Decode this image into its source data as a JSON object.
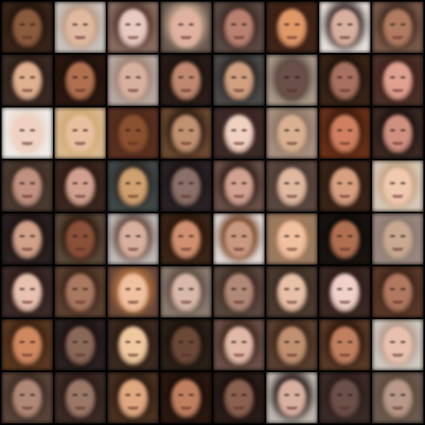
{
  "grid": {
    "rows": 8,
    "cols": 8,
    "cells": [
      {
        "bg": "#3a2418",
        "face": "#8a5a3c",
        "hair": "#1e120c"
      },
      {
        "bg": "#c9c2bc",
        "face": "#e0b8a0",
        "hair": "#b89880"
      },
      {
        "bg": "#8a6c60",
        "face": "#e8c8c0",
        "hair": "#4a302a"
      },
      {
        "bg": "#6a5a50",
        "face": "#e0b0a0",
        "hair": "#c8a890"
      },
      {
        "bg": "#5a4a44",
        "face": "#b88070",
        "hair": "#3a2620"
      },
      {
        "bg": "#402418",
        "face": "#e09868",
        "hair": "#3a1e12"
      },
      {
        "bg": "#e8e0dc",
        "face": "#d8b0a0",
        "hair": "#2a1c1a"
      },
      {
        "bg": "#7a5a48",
        "face": "#b07a60",
        "hair": "#3a2620"
      },
      {
        "bg": "#3a2a24",
        "face": "#e0b090",
        "hair": "#2a1a14"
      },
      {
        "bg": "#2a1810",
        "face": "#b07050",
        "hair": "#1a0e08"
      },
      {
        "bg": "#b8a8a0",
        "face": "#d8b0a0",
        "hair": "#9a8070"
      },
      {
        "bg": "#2a1c18",
        "face": "#c08870",
        "hair": "#1a100c"
      },
      {
        "bg": "#4a4a48",
        "face": "#d0a080",
        "hair": "#2a2220"
      },
      {
        "bg": "#a89888",
        "face": "#6a5048",
        "hair": "#5a4840"
      },
      {
        "bg": "#3a2418",
        "face": "#a87060",
        "hair": "#1a1008"
      },
      {
        "bg": "#4a3028",
        "face": "#e0a090",
        "hair": "#3a2018"
      },
      {
        "bg": "#f0ece8",
        "face": "#f0d0c0",
        "hair": "#e8d8c8"
      },
      {
        "bg": "#d8b890",
        "face": "#e8c0a0",
        "hair": "#d0a870"
      },
      {
        "bg": "#5a3020",
        "face": "#8a5030",
        "hair": "#4a2818"
      },
      {
        "bg": "#6a4830",
        "face": "#c09070",
        "hair": "#2a1a10"
      },
      {
        "bg": "#3a2a28",
        "face": "#f0d0c0",
        "hair": "#3a2420"
      },
      {
        "bg": "#a89080",
        "face": "#d8b090",
        "hair": "#8a7060"
      },
      {
        "bg": "#6a3018",
        "face": "#d08060",
        "hair": "#3a1a0c"
      },
      {
        "bg": "#3a2824",
        "face": "#d09080",
        "hair": "#1a100c"
      },
      {
        "bg": "#4a3a30",
        "face": "#c09080",
        "hair": "#3a2a20"
      },
      {
        "bg": "#3a2820",
        "face": "#d0a090",
        "hair": "#2a1810"
      },
      {
        "bg": "#404848",
        "face": "#d0a070",
        "hair": "#2a2420"
      },
      {
        "bg": "#2a2224",
        "face": "#8a7068",
        "hair": "#1a1214"
      },
      {
        "bg": "#6a5048",
        "face": "#d0a090",
        "hair": "#2a1a14"
      },
      {
        "bg": "#5a4840",
        "face": "#e0b8a0",
        "hair": "#4a3830"
      },
      {
        "bg": "#3a2418",
        "face": "#d8a080",
        "hair": "#2a1810"
      },
      {
        "bg": "#d8c8b8",
        "face": "#f0c8b0",
        "hair": "#c0a080"
      },
      {
        "bg": "#2a2020",
        "face": "#d0a088",
        "hair": "#1a1010"
      },
      {
        "bg": "#5a4838",
        "face": "#8a5038",
        "hair": "#2a1810"
      },
      {
        "bg": "#c0b8b4",
        "face": "#d8b0a0",
        "hair": "#5a4038"
      },
      {
        "bg": "#3a2418",
        "face": "#d09070",
        "hair": "#2a1408"
      },
      {
        "bg": "#e0d8d4",
        "face": "#c89880",
        "hair": "#6a3818"
      },
      {
        "bg": "#9a7a60",
        "face": "#f0c0a0",
        "hair": "#a07858"
      },
      {
        "bg": "#1a1410",
        "face": "#b07050",
        "hair": "#0a0806"
      },
      {
        "bg": "#9a8880",
        "face": "#c8a890",
        "hair": "#8a7870"
      },
      {
        "bg": "#3a2a28",
        "face": "#e8c0b0",
        "hair": "#2a1814"
      },
      {
        "bg": "#5a4030",
        "face": "#a87860",
        "hair": "#3a2418"
      },
      {
        "bg": "#6a4838",
        "face": "#f0c0a0",
        "hair": "#b07040"
      },
      {
        "bg": "#8a7a70",
        "face": "#d8b8a8",
        "hair": "#5a4840"
      },
      {
        "bg": "#5a4840",
        "face": "#b08878",
        "hair": "#3a2820"
      },
      {
        "bg": "#4a3a30",
        "face": "#e8c0a8",
        "hair": "#3a2a20"
      },
      {
        "bg": "#3a2824",
        "face": "#f0d0c8",
        "hair": "#2a1814"
      },
      {
        "bg": "#5a3828",
        "face": "#b07860",
        "hair": "#3a2418"
      },
      {
        "bg": "#5a3820",
        "face": "#d08860",
        "hair": "#3a2010"
      },
      {
        "bg": "#2a2020",
        "face": "#8a6858",
        "hair": "#1a1010"
      },
      {
        "bg": "#3a2a20",
        "face": "#f0c8a0",
        "hair": "#2a1810"
      },
      {
        "bg": "#2a2018",
        "face": "#6a4838",
        "hair": "#1a1008"
      },
      {
        "bg": "#6a5048",
        "face": "#e0b8a8",
        "hair": "#3a2418"
      },
      {
        "bg": "#5a4030",
        "face": "#c09070",
        "hair": "#3a2418"
      },
      {
        "bg": "#5a3a28",
        "face": "#c08060",
        "hair": "#2a1408"
      },
      {
        "bg": "#d0c8c0",
        "face": "#e8c0b0",
        "hair": "#b09888"
      },
      {
        "bg": "#5a4438",
        "face": "#b08878",
        "hair": "#3a2820"
      },
      {
        "bg": "#3a2a24",
        "face": "#9a7868",
        "hair": "#2a1814"
      },
      {
        "bg": "#4a3020",
        "face": "#e0a880",
        "hair": "#2a1810"
      },
      {
        "bg": "#2a1810",
        "face": "#c08060",
        "hair": "#1a0c06"
      },
      {
        "bg": "#2a1c18",
        "face": "#8a6050",
        "hair": "#1a0e0a"
      },
      {
        "bg": "#c0b8b0",
        "face": "#d8b0a0",
        "hair": "#1a1010"
      },
      {
        "bg": "#3a2a28",
        "face": "#6a5048",
        "hair": "#2a1a18"
      },
      {
        "bg": "#6a5a50",
        "face": "#b89888",
        "hair": "#5a4838"
      }
    ]
  }
}
